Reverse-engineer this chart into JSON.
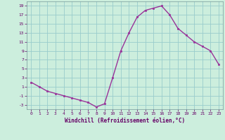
{
  "x": [
    0,
    1,
    2,
    3,
    4,
    5,
    6,
    7,
    8,
    9,
    10,
    11,
    12,
    13,
    14,
    15,
    16,
    17,
    18,
    19,
    20,
    21,
    22,
    23
  ],
  "y": [
    2,
    1,
    0,
    -0.5,
    -1,
    -1.5,
    -2,
    -2.5,
    -3.5,
    -2.8,
    3,
    9,
    13,
    16.5,
    18,
    18.5,
    19,
    17,
    14,
    12.5,
    11,
    10,
    9,
    6
  ],
  "line_color": "#993399",
  "marker_color": "#993399",
  "bg_color": "#cceedd",
  "grid_color": "#99cccc",
  "xlabel": "Windchill (Refroidissement éolien,°C)",
  "xlabel_color": "#660066",
  "tick_color": "#660066",
  "ylim": [
    -4,
    20
  ],
  "yticks": [
    -3,
    -1,
    1,
    3,
    5,
    7,
    9,
    11,
    13,
    15,
    17,
    19
  ],
  "xticks": [
    0,
    1,
    2,
    3,
    4,
    5,
    6,
    7,
    8,
    9,
    10,
    11,
    12,
    13,
    14,
    15,
    16,
    17,
    18,
    19,
    20,
    21,
    22,
    23
  ]
}
